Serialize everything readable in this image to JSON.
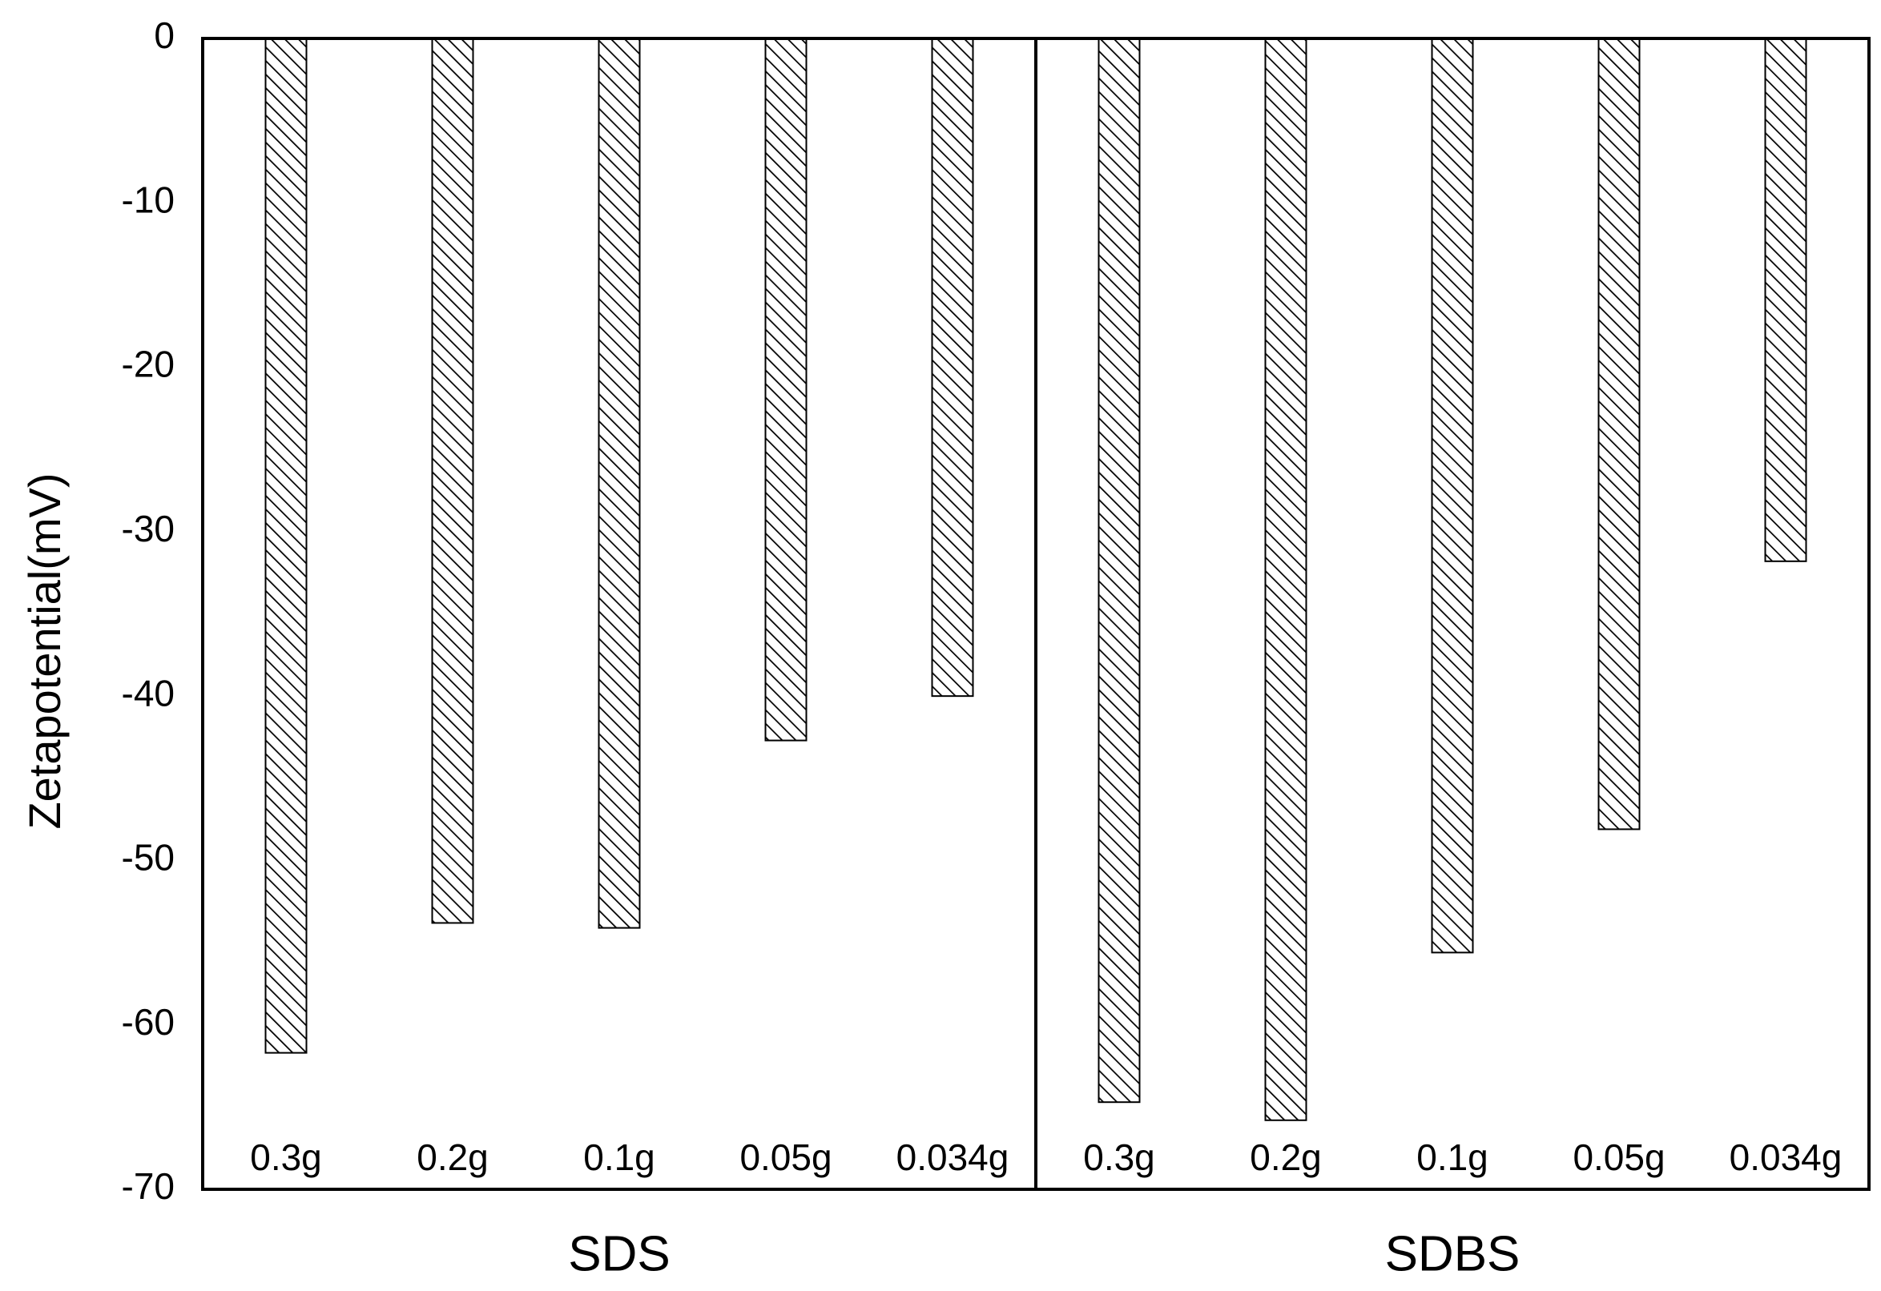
{
  "chart_data": {
    "type": "bar",
    "y_label": "Zetapotential(mV)",
    "ylim": [
      -70,
      0
    ],
    "yticks": [
      0,
      -10,
      -20,
      -30,
      -40,
      -50,
      -60,
      -70
    ],
    "color": "#000000",
    "pattern": "hatch",
    "groups": [
      {
        "name": "SDS",
        "categories": [
          "0.3g",
          "0.2g",
          "0.1g",
          "0.05g",
          "0.034g"
        ],
        "values": [
          -61.7,
          -53.8,
          -54.1,
          -42.7,
          -40.0
        ]
      },
      {
        "name": "SDBS",
        "categories": [
          "0.3g",
          "0.2g",
          "0.1g",
          "0.05g",
          "0.034g"
        ],
        "values": [
          -64.7,
          -65.8,
          -55.6,
          -48.1,
          -31.8
        ]
      }
    ]
  }
}
